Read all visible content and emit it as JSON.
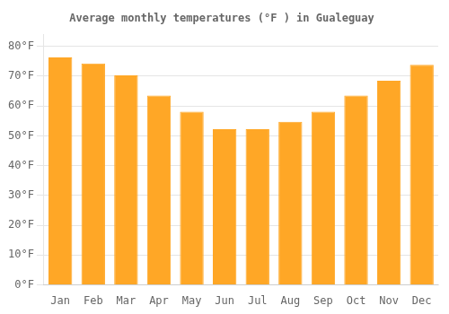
{
  "chart_data": {
    "type": "bar",
    "title": "Average monthly temperatures (°F ) in Gualeguay",
    "categories": [
      "Jan",
      "Feb",
      "Mar",
      "Apr",
      "May",
      "Jun",
      "Jul",
      "Aug",
      "Sep",
      "Oct",
      "Nov",
      "Dec"
    ],
    "values": [
      76.3,
      74.3,
      70.3,
      63.5,
      58.1,
      52.2,
      52.2,
      54.7,
      58.1,
      63.5,
      68.5,
      73.8
    ],
    "color": "#FFA726",
    "ylim": [
      0,
      84
    ],
    "yticks": [
      {
        "value": 0,
        "label": "0°F"
      },
      {
        "value": 10,
        "label": "10°F"
      },
      {
        "value": 20,
        "label": "20°F"
      },
      {
        "value": 30,
        "label": "30°F"
      },
      {
        "value": 40,
        "label": "40°F"
      },
      {
        "value": 50,
        "label": "50°F"
      },
      {
        "value": 60,
        "label": "60°F"
      },
      {
        "value": 70,
        "label": "70°F"
      },
      {
        "value": 80,
        "label": "80°F"
      }
    ],
    "grid": true
  }
}
